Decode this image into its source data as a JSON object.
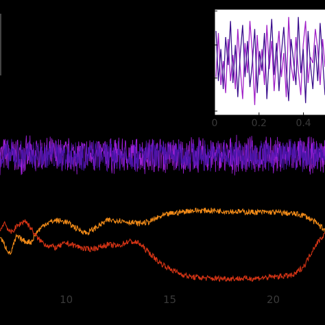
{
  "chart_data": [
    {
      "panel": "main-upper",
      "type": "line",
      "description_visible": "dense noise band",
      "xlim": [
        6.8,
        22.5
      ],
      "ylim": [
        -1.0,
        1.0
      ],
      "series": [
        {
          "color": "#9b1fd6",
          "kind": "noise",
          "center": 0.0,
          "amplitude": 0.45
        },
        {
          "color": "#4a14a8",
          "kind": "noise",
          "center": 0.0,
          "amplitude": 0.38
        }
      ]
    },
    {
      "panel": "main-lower",
      "type": "line",
      "xlim": [
        6.8,
        22.5
      ],
      "xticks": [
        10,
        15,
        20
      ],
      "xticklabels": [
        "10",
        "15",
        "20"
      ],
      "ylim": [
        0.0,
        1.0
      ],
      "series": [
        {
          "color": "#f08a18",
          "x": [
            6.8,
            7.0,
            7.3,
            7.6,
            8.0,
            8.3,
            8.6,
            9.0,
            9.5,
            10.0,
            10.5,
            11.0,
            11.5,
            12.0,
            12.5,
            13.0,
            13.5,
            14.0,
            14.5,
            15.0,
            15.5,
            16.0,
            17.0,
            18.0,
            19.0,
            20.0,
            21.0,
            21.5,
            22.0,
            22.5
          ],
          "y": [
            0.62,
            0.52,
            0.4,
            0.62,
            0.56,
            0.55,
            0.68,
            0.78,
            0.82,
            0.8,
            0.72,
            0.66,
            0.74,
            0.82,
            0.82,
            0.8,
            0.78,
            0.8,
            0.86,
            0.9,
            0.92,
            0.94,
            0.94,
            0.93,
            0.92,
            0.92,
            0.9,
            0.88,
            0.8,
            0.7
          ]
        },
        {
          "color": "#d63415",
          "x": [
            6.8,
            7.0,
            7.3,
            7.6,
            8.0,
            8.3,
            8.6,
            9.0,
            9.5,
            10.0,
            10.5,
            11.0,
            11.5,
            12.0,
            12.5,
            13.0,
            13.5,
            14.0,
            14.5,
            15.0,
            15.5,
            16.0,
            17.0,
            18.0,
            19.0,
            20.0,
            21.0,
            21.5,
            22.0,
            22.5
          ],
          "y": [
            0.68,
            0.8,
            0.66,
            0.74,
            0.82,
            0.72,
            0.6,
            0.52,
            0.48,
            0.54,
            0.5,
            0.46,
            0.48,
            0.52,
            0.5,
            0.56,
            0.54,
            0.42,
            0.3,
            0.22,
            0.16,
            0.12,
            0.1,
            0.1,
            0.1,
            0.12,
            0.14,
            0.26,
            0.5,
            0.66
          ]
        }
      ]
    },
    {
      "panel": "inset",
      "type": "line",
      "xlim": [
        0.0,
        0.5
      ],
      "xticks": [
        0,
        0.2,
        0.4
      ],
      "xticklabels": [
        "0",
        "0.2",
        "0.4"
      ],
      "ylim": [
        0.0,
        1.0
      ],
      "series": [
        {
          "color": "#a020c8",
          "y": [
            0.34,
            0.78,
            0.26,
            0.5,
            0.18,
            0.72,
            0.3,
            0.56,
            0.22,
            0.82,
            0.44,
            0.12,
            0.68,
            0.38,
            0.9,
            0.58,
            0.06,
            0.76,
            0.36,
            0.62,
            0.26,
            0.86,
            0.42,
            0.7,
            0.2,
            0.52,
            0.8,
            0.34,
            0.58,
            0.14,
            0.94,
            0.46,
            0.3,
            0.74,
            0.4,
            0.16,
            0.66,
            0.9,
            0.28,
            0.54,
            0.48,
            0.82,
            0.62,
            0.26,
            0.72,
            0.44
          ]
        },
        {
          "color": "#3a0e8c",
          "y": [
            0.8,
            0.3,
            0.62,
            0.22,
            0.74,
            0.46,
            0.9,
            0.28,
            0.66,
            0.14,
            0.56,
            0.86,
            0.34,
            0.7,
            0.24,
            0.48,
            0.82,
            0.18,
            0.6,
            0.4,
            0.78,
            0.12,
            0.54,
            0.92,
            0.36,
            0.68,
            0.2,
            0.58,
            0.84,
            0.42,
            0.1,
            0.72,
            0.5,
            0.26,
            0.94,
            0.38,
            0.62,
            0.08,
            0.8,
            0.46,
            0.22,
            0.66,
            0.3,
            0.88,
            0.52,
            0.16
          ]
        }
      ]
    }
  ]
}
